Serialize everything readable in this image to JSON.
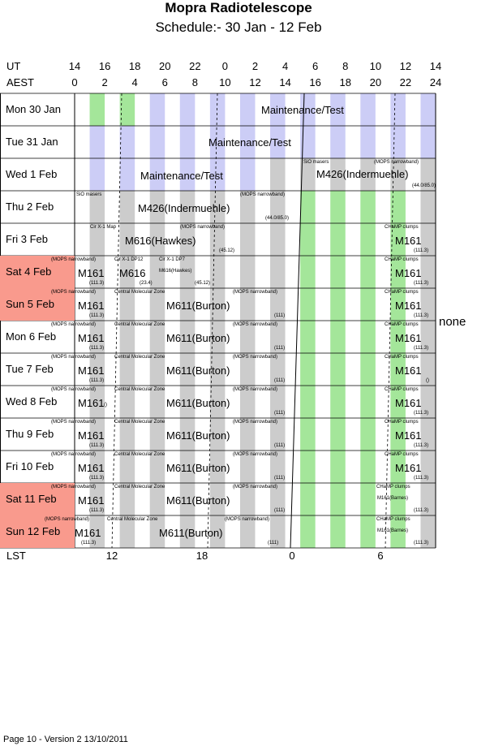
{
  "title": "Mopra Radiotelescope",
  "subtitle": "Schedule:- 30 Jan - 12 Feb",
  "axis": {
    "ut_label": "UT",
    "aest_label": "AEST",
    "lst_label": "LST",
    "ut_ticks": [
      "14",
      "16",
      "18",
      "20",
      "22",
      "0",
      "2",
      "4",
      "6",
      "8",
      "10",
      "12",
      "14"
    ],
    "aest_ticks": [
      "0",
      "2",
      "4",
      "6",
      "8",
      "10",
      "12",
      "14",
      "16",
      "18",
      "20",
      "22",
      "24"
    ],
    "lst_ticks": [
      "12",
      "18",
      "0",
      "6"
    ]
  },
  "days": [
    {
      "label": "Mon   30 Jan",
      "weekend": false
    },
    {
      "label": "Tue   31 Jan",
      "weekend": false
    },
    {
      "label": "Wed   1 Feb",
      "weekend": false
    },
    {
      "label": "Thu   2 Feb",
      "weekend": false
    },
    {
      "label": "Fri   3 Feb",
      "weekend": false
    },
    {
      "label": "Sat   4 Feb",
      "weekend": true
    },
    {
      "label": "Sun   5 Feb",
      "weekend": true
    },
    {
      "label": "Mon   6 Feb",
      "weekend": false
    },
    {
      "label": "Tue   7 Feb",
      "weekend": false
    },
    {
      "label": "Wed   8 Feb",
      "weekend": false
    },
    {
      "label": "Thu   9 Feb",
      "weekend": false
    },
    {
      "label": "Fri   10 Feb",
      "weekend": false
    },
    {
      "label": "Sat   11 Feb",
      "weekend": true
    },
    {
      "label": "Sun   12 Feb",
      "weekend": true
    }
  ],
  "schedule_labels": {
    "maint": "Maintenance/Test",
    "sio": "SiO masers",
    "mops": "(MOPS narrowband)",
    "m426": "M426(Indermuehle)",
    "m426_note": "(44.0/85.0)",
    "cirx1": "Cir X-1 Map",
    "m616": "M616(Hawkes)",
    "m616_note": "(45.12)",
    "champ": "CHaMP clumps",
    "m161": "M161",
    "m161_note": "(111.3)",
    "cirx1_dp12": "Cir X-1 DP12",
    "m616_short": "M616",
    "m616_short_note": "(23.4)",
    "cirx1_dp7": "Cir X-1 DP7",
    "cmz": "Central Molecular Zone",
    "m611": "M611(Burton)",
    "m611_note": "(111)",
    "m161_barnes": "M161(Barnes)",
    "empty_note": "()"
  },
  "none_label": "none",
  "footer": "Page 10 - Version 2  13/10/2011",
  "colors": {
    "grey": "#cccccc",
    "green": "#a4e69a",
    "lavender": "#cccdf6",
    "weekend": "#f99a8d"
  }
}
